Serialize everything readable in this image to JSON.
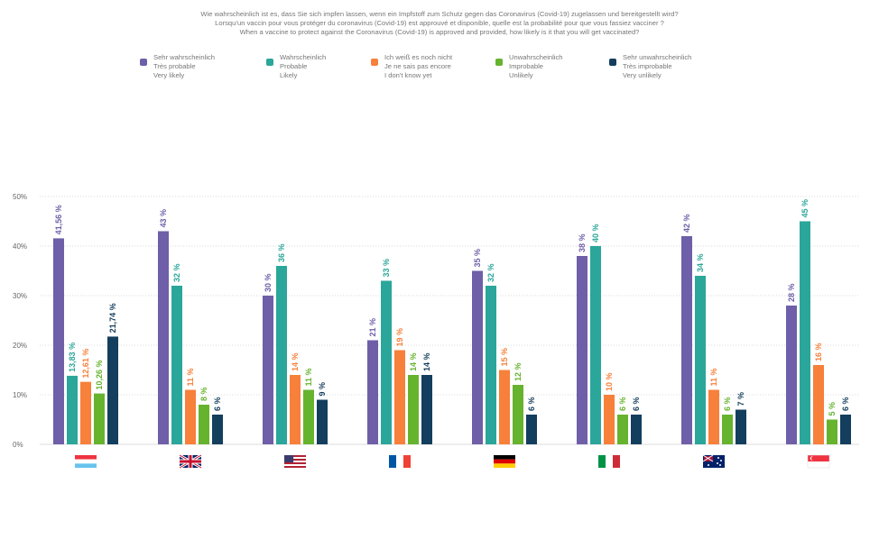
{
  "header": {
    "title_de": "Wie wahrscheinlich ist es, dass Sie sich impfen lassen, wenn ein Impfstoff zum Schutz gegen das Coronavirus (Covid-19) zugelassen und bereitgestellt wird?",
    "title_fr": "Lorsqu’un vaccin pour vous protéger du coronavirus (Covid-19) est approuvé et disponible, quelle est la probabilité pour que vous fassiez vacciner ?",
    "title_en": "When a vaccine to protect against the Coronavirus (Covid-19) is approved and provided, how likely is it that you will get vaccinated?"
  },
  "chart_data": {
    "type": "bar",
    "title": "Wie wahrscheinlich ist es, dass Sie sich impfen lassen, wenn ein Impfstoff zum Schutz gegen das Coronavirus (Covid-19) zugelassen und bereitgestellt wird? / Lorsqu’un vaccin pour vous protéger du coronavirus (Covid-19) est approuvé et disponible, quelle est la probabilité pour que vous fassiez vacciner ? / When a vaccine to protect against the Coronavirus (Covid-19) is approved and provided, how likely is it that you will get vaccinated?",
    "categories": [
      "Luxembourg",
      "United Kingdom",
      "USA",
      "France",
      "Germany",
      "Italy",
      "Australia",
      "Singapore"
    ],
    "ylim": [
      0,
      50
    ],
    "yticks": [
      "0%",
      "10%",
      "20%",
      "30%",
      "40%",
      "50%"
    ],
    "grid": true,
    "legend_position": "top",
    "series": [
      {
        "name": "Sehr wahrscheinlich / Très probable / Very likely",
        "lines": [
          "Sehr wahrscheinlich",
          "Très probable",
          "Very likely"
        ],
        "color": "#6e5fa8",
        "values": [
          41.56,
          43,
          30,
          21,
          35,
          38,
          42,
          28
        ],
        "labels": [
          "41,56 %",
          "43 %",
          "30 %",
          "21 %",
          "35 %",
          "38 %",
          "42 %",
          "28 %"
        ]
      },
      {
        "name": "Wahrscheinlich / Probable / Likely",
        "lines": [
          "Wahrscheinlich",
          "Probable",
          "Likely"
        ],
        "color": "#2ba69a",
        "values": [
          13.83,
          32,
          36,
          33,
          32,
          40,
          34,
          45
        ],
        "labels": [
          "13,83 %",
          "32 %",
          "36 %",
          "33 %",
          "32 %",
          "40 %",
          "34 %",
          "45 %"
        ]
      },
      {
        "name": "Ich weiß es noch nicht / Je ne sais pas encore / I don't know yet",
        "lines": [
          "Ich weiß es noch nicht",
          "Je ne sais pas encore",
          "I don't know yet"
        ],
        "color": "#f7803a",
        "values": [
          12.61,
          11,
          14,
          19,
          15,
          10,
          11,
          16
        ],
        "labels": [
          "12,61 %",
          "11 %",
          "14 %",
          "19 %",
          "15 %",
          "10 %",
          "11 %",
          "16 %"
        ]
      },
      {
        "name": "Unwahrscheinlich / Improbable / Unlikely",
        "lines": [
          "Unwahrscheinlich",
          "Improbable",
          "Unlikely"
        ],
        "color": "#66b32e",
        "values": [
          10.26,
          8,
          11,
          14,
          12,
          6,
          6,
          5
        ],
        "labels": [
          "10,26 %",
          "8 %",
          "11 %",
          "14 %",
          "12 %",
          "6 %",
          "6 %",
          "5 %"
        ]
      },
      {
        "name": "Sehr unwahrscheinlich / Très improbable / Very unlikely",
        "lines": [
          "Sehr unwahrscheinlich",
          "Très improbable",
          "Very unlikely"
        ],
        "color": "#143e5d",
        "values": [
          21.74,
          6,
          9,
          14,
          6,
          6,
          7,
          6
        ],
        "labels": [
          "21,74 %",
          "6 %",
          "9 %",
          "14 %",
          "6 %",
          "6 %",
          "7 %",
          "6 %"
        ]
      }
    ],
    "flags": [
      "flag-luxembourg-icon",
      "flag-uk-icon",
      "flag-usa-icon",
      "flag-france-icon",
      "flag-germany-icon",
      "flag-italy-icon",
      "flag-australia-icon",
      "flag-singapore-icon"
    ]
  }
}
